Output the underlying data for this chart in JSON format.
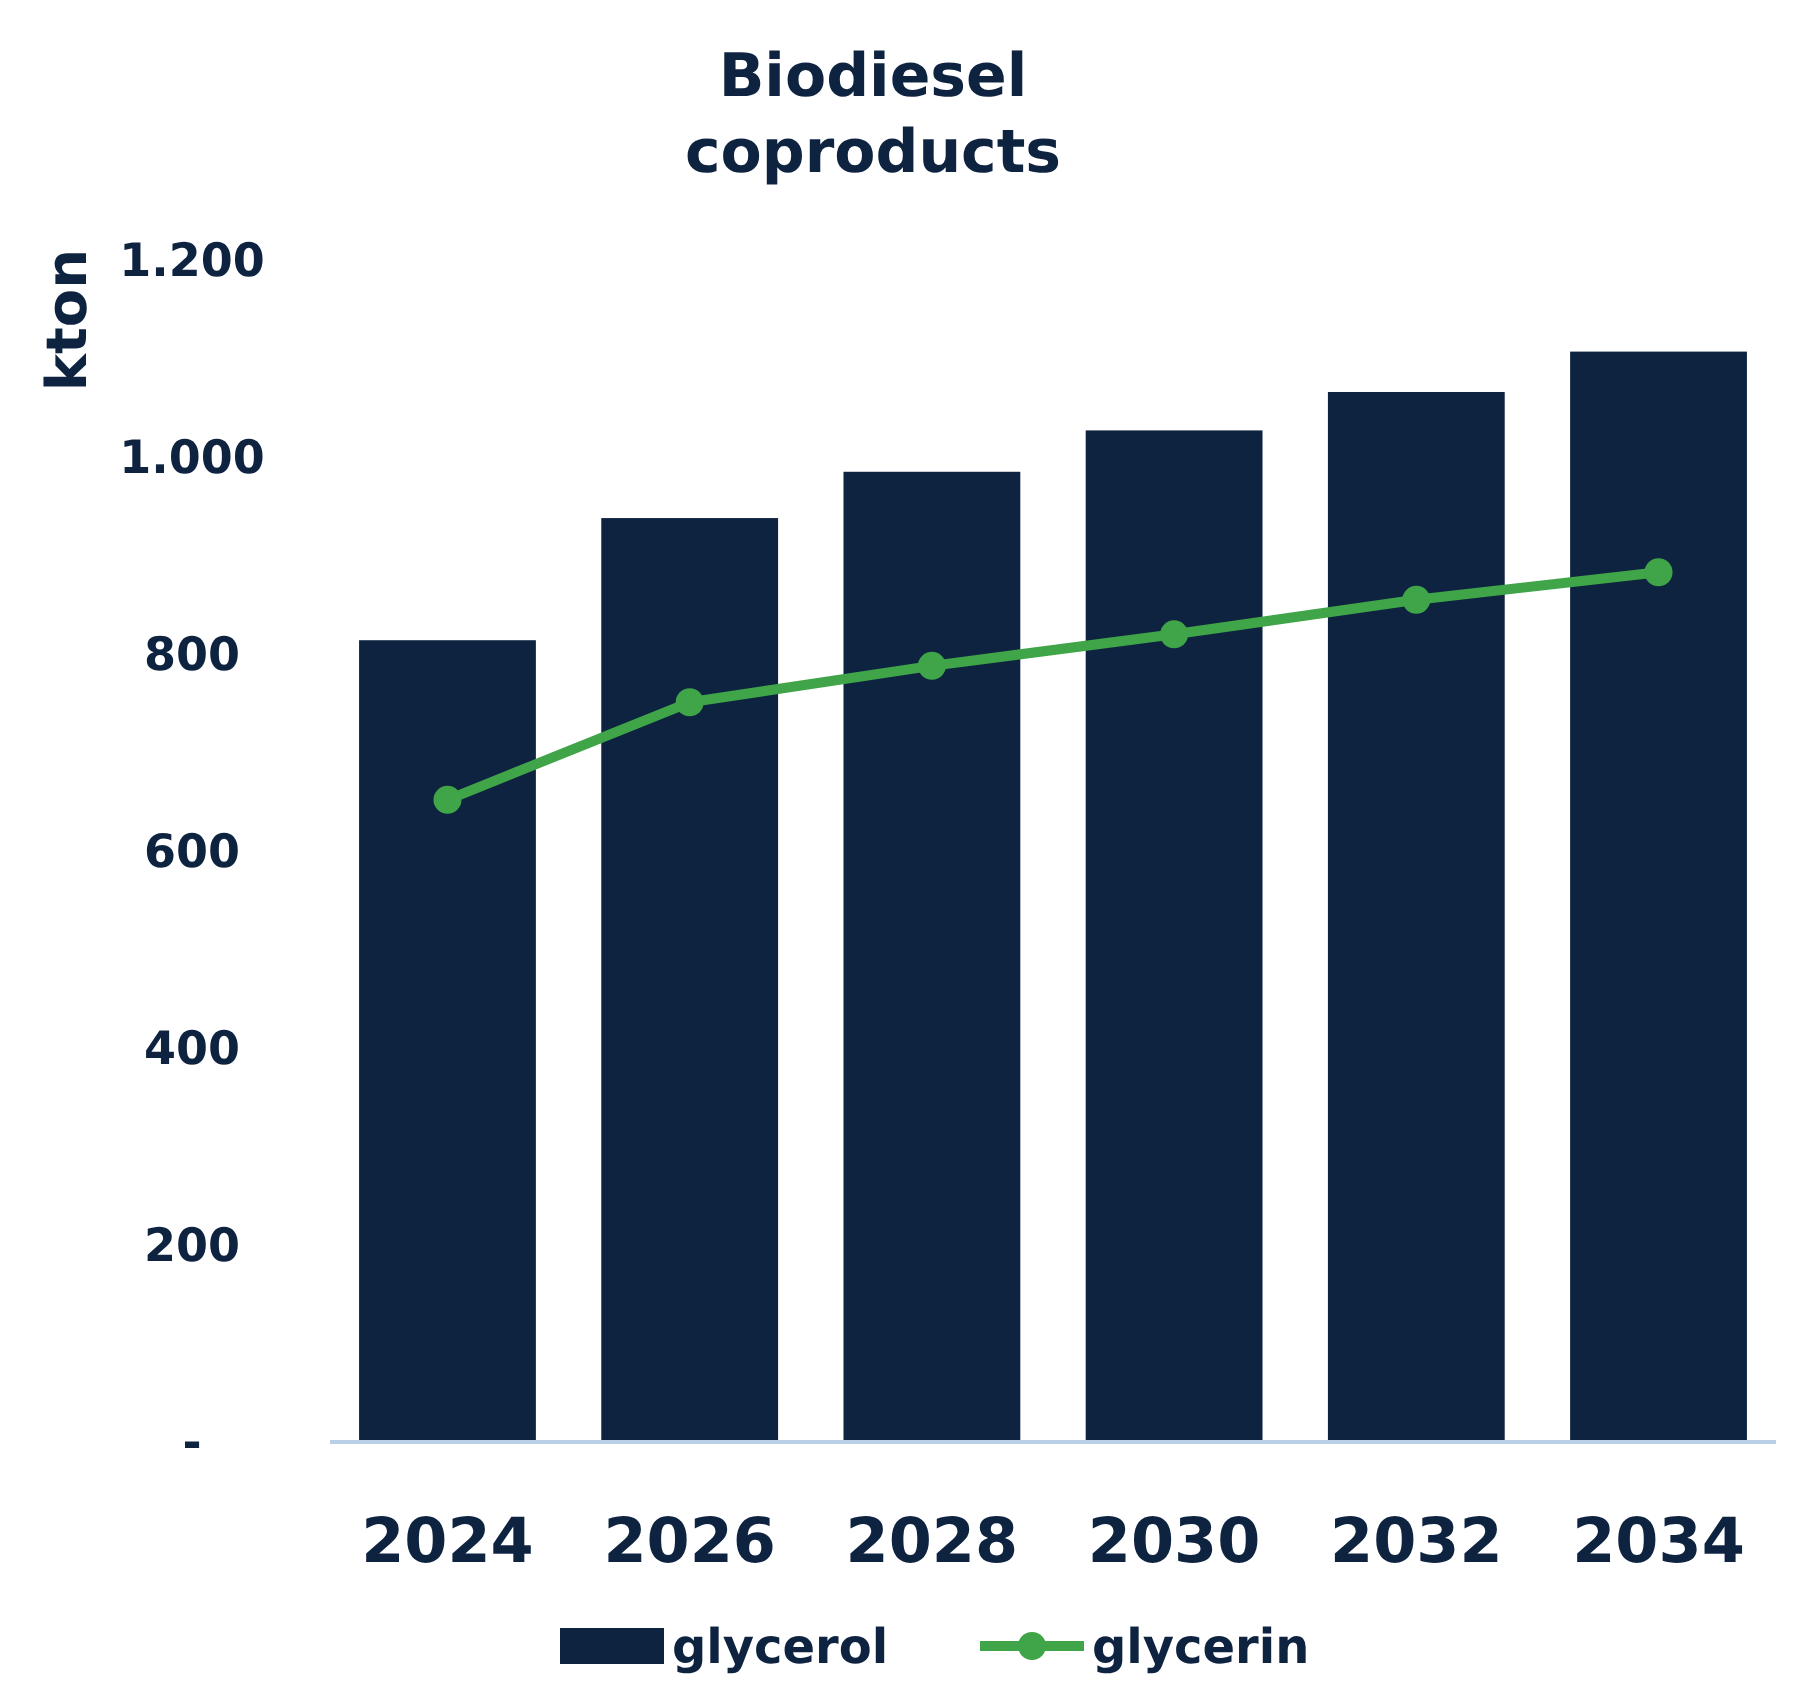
{
  "chart_data": {
    "type": "bar",
    "title": "Biodiesel coproducts",
    "ylabel": "kton",
    "categories": [
      "2024",
      "2026",
      "2028",
      "2030",
      "2032",
      "2034"
    ],
    "series": [
      {
        "name": "glycerol",
        "color": "#0e2340",
        "values": [
          814,
          938,
          985,
          1027,
          1066,
          1107
        ]
      },
      {
        "name": "glycerin",
        "type": "line",
        "color": "#3fa548",
        "values": [
          652,
          751,
          788,
          820,
          855,
          883
        ]
      }
    ],
    "ylim": [
      0,
      1200
    ],
    "yticks": [
      {
        "value": 0,
        "label": "-"
      },
      200,
      400,
      600,
      800,
      {
        "value": 1000,
        "label": "1.000"
      },
      {
        "value": 1200,
        "label": "1.200"
      }
    ],
    "grid": false,
    "legend": "bottom",
    "marker": "circle"
  }
}
